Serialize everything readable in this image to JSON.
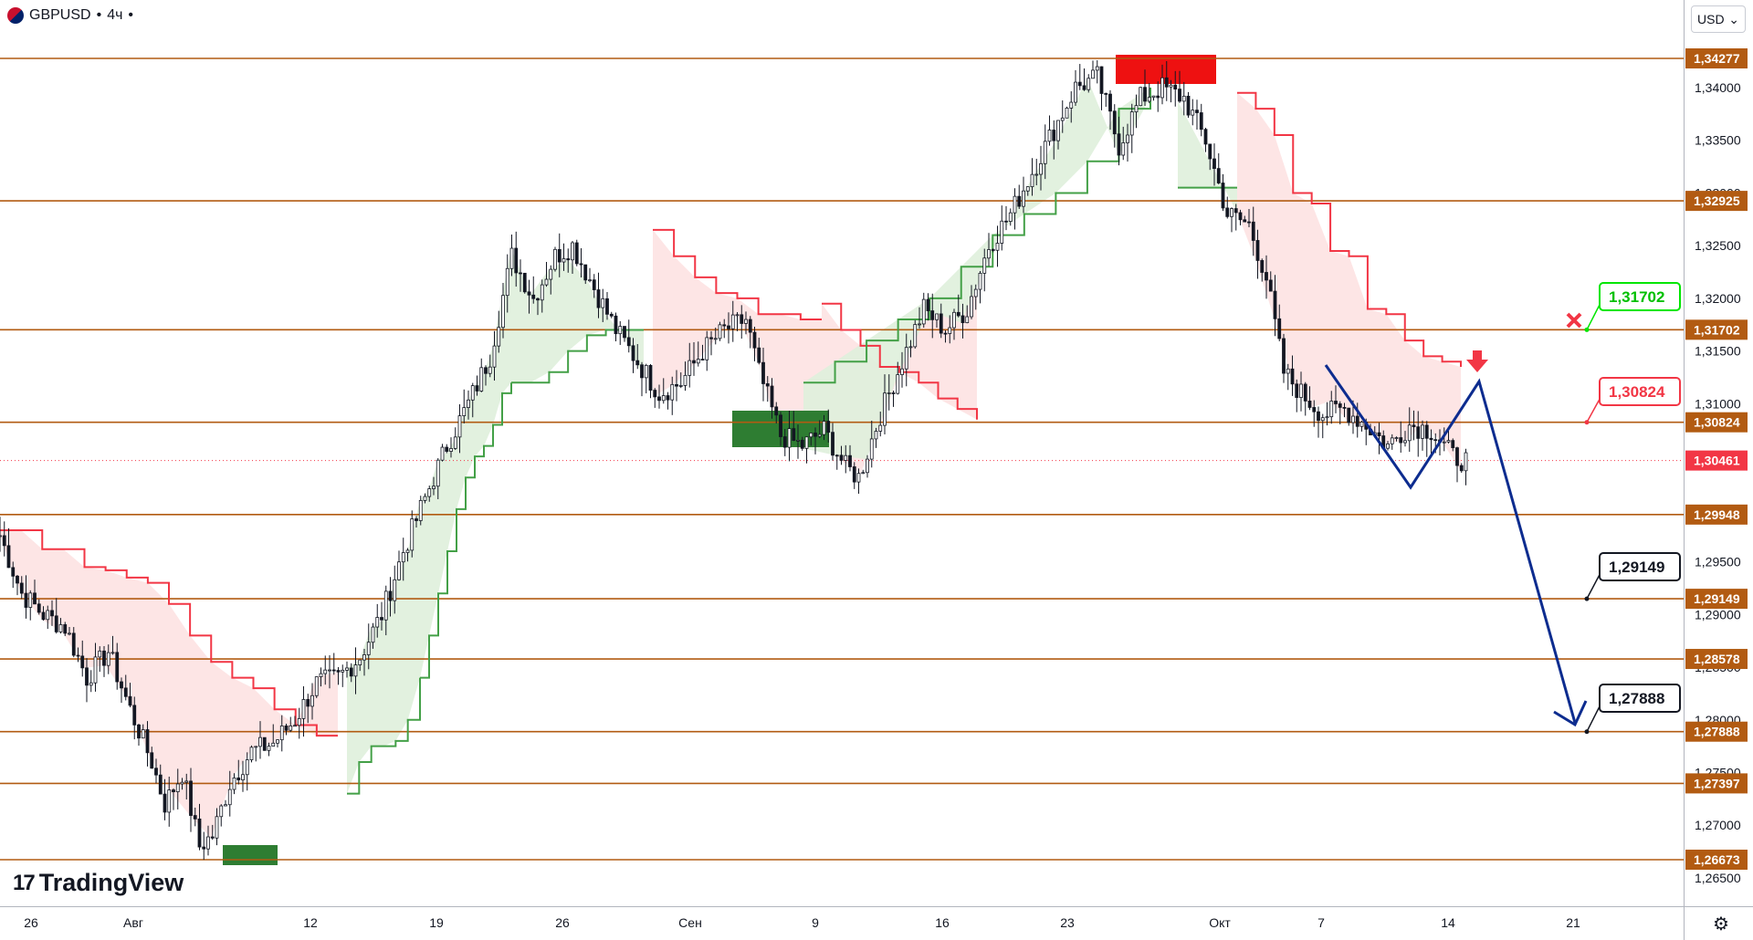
{
  "header": {
    "symbol": "GBPUSD",
    "interval": "4ч",
    "separator": "•"
  },
  "currency_selector": {
    "value": "USD",
    "chevron": "chevron-down-icon"
  },
  "branding": {
    "name": "TradingView"
  },
  "icons": {
    "settings": "gear-icon",
    "target_reached": "cross-icon",
    "sell_signal": "arrow-down-icon"
  },
  "colors": {
    "level_line": "#b25b12",
    "level_label_bg": "#b25b12",
    "candle": "#131722",
    "trend_up_line": "#43a047",
    "trend_up_fill": "#dff0dc",
    "trend_down_line": "#f23645",
    "trend_down_fill": "#fde2e2",
    "projection": "#0d2c8f",
    "resistance_zone": "#ee1111",
    "support_zone": "#2e7d32",
    "callout_green": "#00e600",
    "callout_red": "#f23645",
    "callout_black": "#131722"
  },
  "chart_data": {
    "type": "candlestick",
    "ylim": [
      1.261,
      1.3445
    ],
    "y_tick_labels": [
      "1,26500",
      "1,27000",
      "1,27500",
      "1,28000",
      "1,28500",
      "1,29000",
      "1,29500",
      "1,30000",
      "1,30500",
      "1,31000",
      "1,31500",
      "1,32000",
      "1,32500",
      "1,33000",
      "1,33500",
      "1,34000"
    ],
    "x_tick_labels": [
      "26",
      "Авг",
      "12",
      "19",
      "26",
      "Сен",
      "9",
      "16",
      "23",
      "Окт",
      "7",
      "14",
      "21"
    ],
    "levels": [
      "1,34277",
      "1,32925",
      "1,31702",
      "1,30824",
      "1,29948",
      "1,29149",
      "1,28578",
      "1,27888",
      "1,27397",
      "1,26673"
    ],
    "current_price": "1,30461",
    "callouts": [
      "1,31702",
      "1,30824",
      "1,29149",
      "1,27888"
    ],
    "price_path": [
      [
        0,
        1.2975
      ],
      [
        5,
        1.292
      ],
      [
        10,
        1.29
      ],
      [
        15,
        1.2888
      ],
      [
        20,
        1.284
      ],
      [
        25,
        1.2865
      ],
      [
        30,
        1.281
      ],
      [
        35,
        1.276
      ],
      [
        38,
        1.272
      ],
      [
        42,
        1.275
      ],
      [
        46,
        1.268
      ],
      [
        49,
        1.269
      ],
      [
        53,
        1.274
      ],
      [
        58,
        1.277
      ],
      [
        63,
        1.2778
      ],
      [
        68,
        1.28
      ],
      [
        73,
        1.2835
      ],
      [
        78,
        1.284
      ],
      [
        83,
        1.286
      ],
      [
        88,
        1.29
      ],
      [
        93,
        1.296
      ],
      [
        98,
        1.301
      ],
      [
        103,
        1.306
      ],
      [
        108,
        1.31
      ],
      [
        113,
        1.3145
      ],
      [
        118,
        1.324
      ],
      [
        123,
        1.32
      ],
      [
        128,
        1.324
      ],
      [
        132,
        1.325
      ],
      [
        137,
        1.321
      ],
      [
        142,
        1.317
      ],
      [
        147,
        1.314
      ],
      [
        152,
        1.311
      ],
      [
        157,
        1.312
      ],
      [
        162,
        1.315
      ],
      [
        167,
        1.317
      ],
      [
        172,
        1.318
      ],
      [
        175,
        1.313
      ],
      [
        180,
        1.307
      ],
      [
        185,
        1.306
      ],
      [
        190,
        1.3075
      ],
      [
        195,
        1.304
      ],
      [
        198,
        1.303
      ],
      [
        203,
        1.309
      ],
      [
        208,
        1.314
      ],
      [
        213,
        1.319
      ],
      [
        218,
        1.317
      ],
      [
        223,
        1.319
      ],
      [
        228,
        1.325
      ],
      [
        233,
        1.328
      ],
      [
        238,
        1.332
      ],
      [
        243,
        1.336
      ],
      [
        248,
        1.34
      ],
      [
        253,
        1.341
      ],
      [
        258,
        1.3345
      ],
      [
        263,
        1.339
      ],
      [
        268,
        1.34
      ],
      [
        273,
        1.339
      ],
      [
        278,
        1.335
      ],
      [
        283,
        1.328
      ],
      [
        288,
        1.327
      ],
      [
        292,
        1.322
      ],
      [
        296,
        1.313
      ],
      [
        300,
        1.311
      ],
      [
        305,
        1.309
      ],
      [
        310,
        1.3095
      ],
      [
        315,
        1.308
      ],
      [
        320,
        1.306
      ],
      [
        325,
        1.308
      ],
      [
        330,
        1.3075
      ],
      [
        335,
        1.305
      ],
      [
        338,
        1.3046
      ]
    ]
  }
}
